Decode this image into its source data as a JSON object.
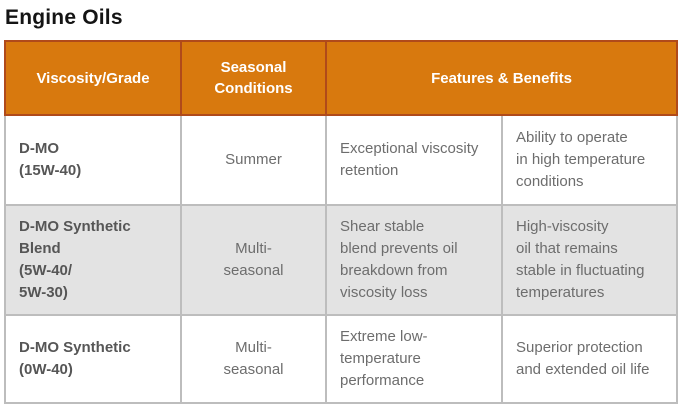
{
  "page_title": "Engine Oils",
  "colors": {
    "header_bg": "#d8790e",
    "header_border": "#b04a1a",
    "header_text": "#ffffff",
    "body_border": "#bdbdbd",
    "shaded_row_bg": "#e3e3e3",
    "body_text": "#6d6d6d",
    "grade_text": "#565656",
    "title_text": "#141414"
  },
  "table": {
    "headers": [
      {
        "label": "Viscosity/Grade"
      },
      {
        "label": "Seasonal\nConditions"
      },
      {
        "label": "Features & Benefits"
      }
    ],
    "rows": [
      {
        "grade": "D-MO\n(15W-40)",
        "season": "Summer",
        "feature": "Exceptional viscosity\nretention",
        "benefit": "Ability to operate\nin high temperature\nconditions",
        "shaded": false
      },
      {
        "grade": "D-MO Synthetic\nBlend\n(5W-40/\n5W-30)",
        "season": "Multi-\nseasonal",
        "feature": "Shear stable\nblend prevents oil\nbreakdown from\nviscosity loss",
        "benefit": "High-viscosity\noil that remains\nstable in fluctuating\ntemperatures",
        "shaded": true
      },
      {
        "grade": "D-MO Synthetic\n(0W-40)",
        "season": "Multi-\nseasonal",
        "feature": "Extreme low-\ntemperature\nperformance",
        "benefit": "Superior protection\nand extended oil life",
        "shaded": false
      }
    ]
  }
}
